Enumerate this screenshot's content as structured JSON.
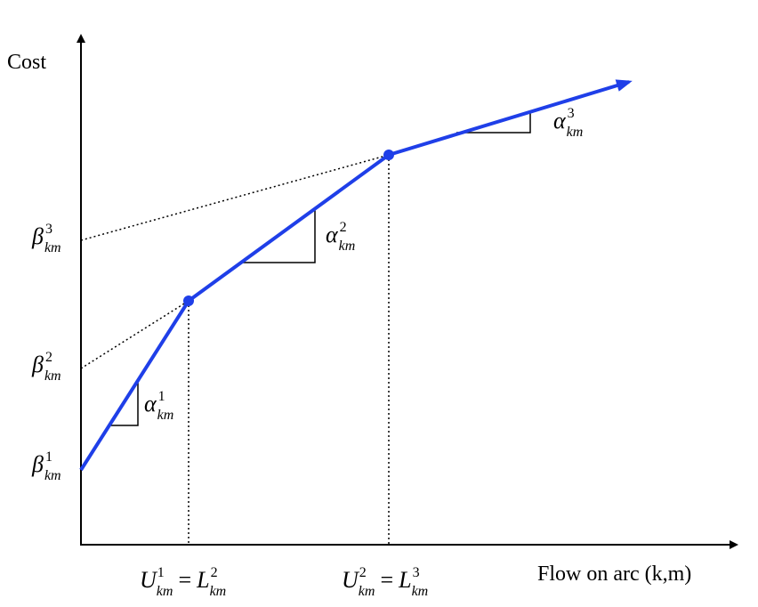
{
  "axes": {
    "y_label": "Cost",
    "x_label": "Flow on arc (k,m)"
  },
  "intercepts": [
    {
      "sym": "β",
      "sup": "1",
      "sub": "km"
    },
    {
      "sym": "β",
      "sup": "2",
      "sub": "km"
    },
    {
      "sym": "β",
      "sup": "3",
      "sub": "km"
    }
  ],
  "slopes": [
    {
      "sym": "α",
      "sup": "1",
      "sub": "km"
    },
    {
      "sym": "α",
      "sup": "2",
      "sub": "km"
    },
    {
      "sym": "α",
      "sup": "3",
      "sub": "km"
    }
  ],
  "breakpoints": [
    {
      "left": {
        "sym": "U",
        "sup": "1",
        "sub": "km"
      },
      "eq": "=",
      "right": {
        "sym": "L",
        "sup": "2",
        "sub": "km"
      }
    },
    {
      "left": {
        "sym": "U",
        "sup": "2",
        "sub": "km"
      },
      "eq": "=",
      "right": {
        "sym": "L",
        "sup": "3",
        "sub": "km"
      }
    }
  ],
  "colors": {
    "curve": "#1f3fe8",
    "axis": "#000000",
    "guides": "#000000"
  }
}
